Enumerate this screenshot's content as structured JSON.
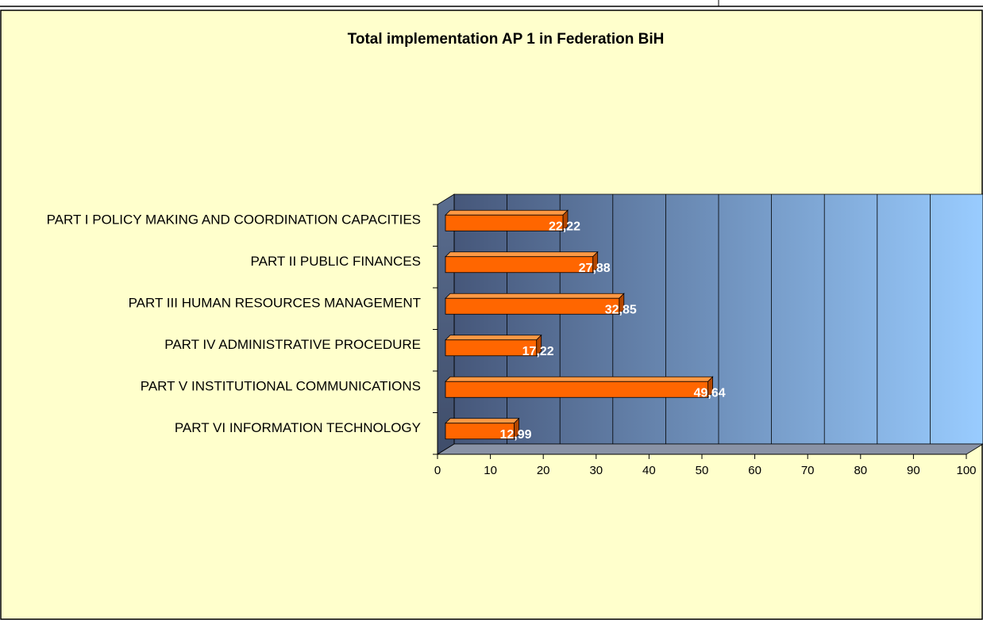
{
  "chart_data": {
    "type": "bar3d_horizontal",
    "title": "Total implementation AP 1 in Federation BiH",
    "categories": [
      "PART I POLICY MAKING AND COORDINATION CAPACITIES",
      "PART II PUBLIC FINANCES",
      "PART III HUMAN RESOURCES MANAGEMENT",
      "PART IV ADMINISTRATIVE PROCEDURE",
      "PART V INSTITUTIONAL COMMUNICATIONS",
      "PART VI INFORMATION TECHNOLOGY"
    ],
    "values": [
      22.22,
      27.88,
      32.85,
      17.22,
      49.64,
      12.99
    ],
    "value_labels": [
      "22,22",
      "27,88",
      "32,85",
      "17,22",
      "49,64",
      "12,99"
    ],
    "color": "#ff6600",
    "xlim": [
      0,
      100
    ],
    "xticks": [
      0,
      10,
      20,
      30,
      40,
      50,
      60,
      70,
      80,
      90,
      100
    ],
    "grid": true
  }
}
